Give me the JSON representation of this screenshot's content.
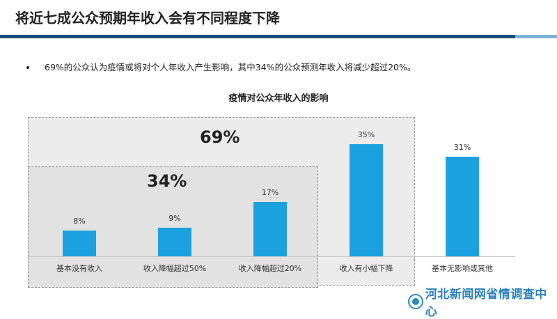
{
  "header": {
    "title": "将近七成公众预期年收入会有不同程度下降",
    "bullet": "69%的公众认为疫情或将对个人年收入产生影响，其中34%的公众预测年收入将减少超过20%。"
  },
  "chart_data": {
    "type": "bar",
    "title": "疫情对公众年收入的影响",
    "categories": [
      "基本没有收入",
      "收入降幅超过50%",
      "收入降幅超过20%",
      "收入有小幅下降",
      "基本无影响或其他"
    ],
    "values": [
      8,
      9,
      17,
      35,
      31
    ],
    "value_labels": [
      "8%",
      "9%",
      "17%",
      "35%",
      "31%"
    ],
    "annotations": [
      "69%",
      "34%"
    ],
    "bar_color": "#1ba1e0",
    "ylim": [
      0,
      40
    ]
  },
  "footer": {
    "logo_text": "河北新闻网省情调查中心"
  }
}
